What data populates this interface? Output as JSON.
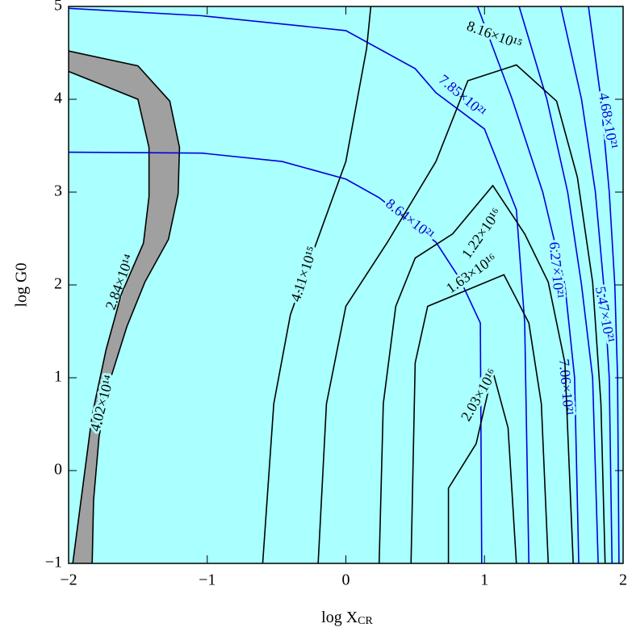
{
  "chart_data": {
    "type": "contour",
    "xlabel": "log X",
    "xlabel_subscript": "CR",
    "ylabel": "log G0",
    "xlim": [
      -2,
      2
    ],
    "ylim": [
      -1,
      5
    ],
    "xticks": [
      {
        "value": -2,
        "label": "−2"
      },
      {
        "value": -1,
        "label": "−1"
      },
      0,
      1,
      2
    ],
    "yticks": [
      {
        "value": -1,
        "label": "−1"
      },
      0,
      1,
      2,
      3,
      4,
      5
    ],
    "background": "#aaffff",
    "band_color": "#a0a0a0",
    "series": [
      {
        "name": "2.84×10¹⁴",
        "color": "#000000",
        "x": [
          -2,
          -1.5,
          -1.27,
          -1.2,
          -1.21,
          -1.28,
          -1.45,
          -1.58,
          -1.7,
          -1.78,
          -1.82,
          -1.83
        ],
        "y": [
          4.52,
          4.36,
          3.98,
          3.48,
          2.98,
          2.49,
          2.03,
          1.55,
          0.98,
          0.37,
          -0.32,
          -1
        ]
      },
      {
        "name": "4.02×10¹⁴",
        "color": "#000000",
        "x": [
          -2,
          -1.5,
          -1.42,
          -1.42,
          -1.46,
          -1.62,
          -1.73,
          -1.83,
          -1.9,
          -1.97
        ],
        "y": [
          4.3,
          4.0,
          3.48,
          2.95,
          2.45,
          1.9,
          1.3,
          0.6,
          -0.2,
          -1
        ]
      },
      {
        "name": "8.64×10²¹",
        "color": "#0000dd",
        "x": [
          -2,
          -1.04,
          -0.46,
          0,
          0.24,
          0.65,
          0.82,
          0.97,
          0.98
        ],
        "y": [
          3.43,
          3.42,
          3.33,
          3.14,
          2.94,
          2.46,
          2.07,
          1.59,
          -1
        ]
      },
      {
        "name": "7.85×10²¹",
        "color": "#0000dd",
        "x": [
          -2,
          -1.04,
          0,
          0.5,
          0.65,
          1.0,
          1.23,
          1.29,
          1.32
        ],
        "y": [
          4.98,
          4.9,
          4.74,
          4.33,
          4.07,
          3.68,
          2.81,
          1.59,
          -1
        ]
      },
      {
        "name": "7.06×10²¹",
        "color": "#0000dd",
        "x": [
          0.95,
          1.2,
          1.42,
          1.58,
          1.65,
          1.68
        ],
        "y": [
          5,
          4,
          3,
          2,
          1,
          -1
        ]
      },
      {
        "name": "6.27×10²¹",
        "color": "#0000dd",
        "x": [
          1.25,
          1.45,
          1.6,
          1.7,
          1.78,
          1.82
        ],
        "y": [
          5,
          4,
          3,
          2,
          1,
          -1
        ]
      },
      {
        "name": "5.47×10²¹",
        "color": "#0000dd",
        "x": [
          1.55,
          1.7,
          1.8,
          1.86,
          1.9,
          1.92
        ],
        "y": [
          5,
          4,
          3,
          2,
          1,
          -1
        ]
      },
      {
        "name": "4.68×10²¹",
        "color": "#0000dd",
        "x": [
          1.75,
          1.84,
          1.9,
          1.94,
          1.96,
          1.97
        ],
        "y": [
          5,
          4,
          3,
          2,
          1,
          -1
        ]
      },
      {
        "name": "4.11×10¹⁵",
        "color": "#000000",
        "x": [
          0.18,
          0.15,
          0,
          -0.17,
          -0.4,
          -0.52,
          -0.6
        ],
        "y": [
          5,
          4.55,
          3.33,
          2.63,
          1.68,
          0.72,
          -1
        ]
      },
      {
        "name": "8.16×10¹⁵",
        "color": "#000000",
        "x": [
          -0.2,
          -0.14,
          0,
          0.3,
          0.65,
          0.88,
          1.23,
          1.52,
          1.67,
          1.78,
          1.84,
          1.87
        ],
        "y": [
          -1,
          0.72,
          1.77,
          2.46,
          3.33,
          4.2,
          4.37,
          3.98,
          3.16,
          2.03,
          0.72,
          -1
        ]
      },
      {
        "name": "1.22×10¹⁶",
        "color": "#000000",
        "x": [
          0.24,
          0.27,
          0.36,
          0.5,
          0.77,
          1.06,
          1.29,
          1.46,
          1.58,
          1.64
        ],
        "y": [
          -1,
          0.72,
          1.77,
          2.29,
          2.55,
          3.07,
          2.55,
          2.03,
          1.16,
          -1
        ]
      },
      {
        "name": "1.63×10¹⁶",
        "color": "#000000",
        "x": [
          0.47,
          0.5,
          0.59,
          1.14,
          1.32,
          1.41,
          1.46
        ],
        "y": [
          -1,
          1.16,
          1.77,
          2.11,
          1.59,
          0.72,
          -1
        ]
      },
      {
        "name": "2.03×10¹⁶",
        "color": "#000000",
        "x": [
          0.74,
          0.74,
          0.94,
          1.06,
          1.17,
          1.23
        ],
        "y": [
          -1,
          -0.19,
          0.29,
          1.07,
          0.46,
          -1
        ]
      }
    ]
  }
}
